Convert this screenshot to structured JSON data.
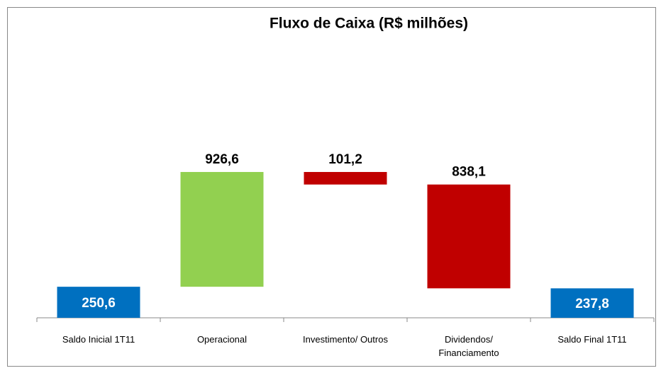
{
  "chart_data": {
    "type": "waterfall",
    "title": "Fluxo de Caixa (R$ milhões)",
    "categories": [
      "Saldo Inicial 1T11",
      "Operacional",
      "Investimento/ Outros",
      "Dividendos/\nFinanciamento",
      "Saldo Final 1T11"
    ],
    "values": [
      250.6,
      926.6,
      -101.2,
      -838.1,
      237.8
    ],
    "value_labels": [
      "250,6",
      "926,6",
      "101,2",
      "838,1",
      "237,8"
    ],
    "measure": [
      "absolute",
      "relative",
      "relative",
      "relative",
      "absolute"
    ],
    "colors": [
      "#0070c0",
      "#92d050",
      "#c00000",
      "#c00000",
      "#0070c0"
    ],
    "ylim": [
      0,
      2200
    ]
  }
}
